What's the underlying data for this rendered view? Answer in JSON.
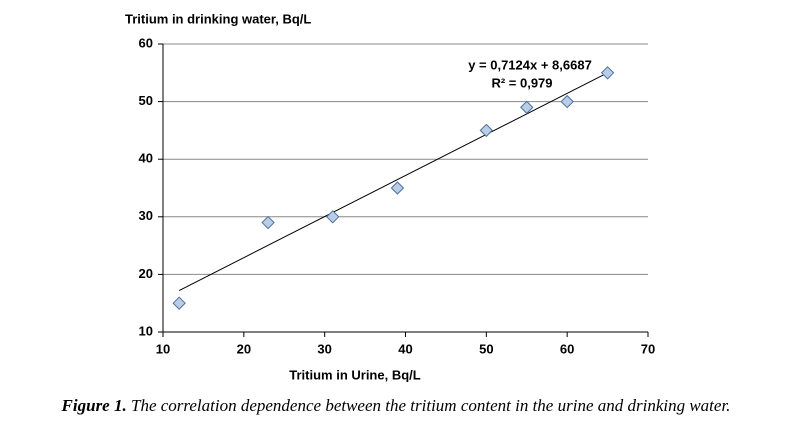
{
  "chart_data": {
    "type": "scatter",
    "title": "Tritium in drinking water, Bq/L",
    "x_label": "Tritium in Urine, Bq/L",
    "annotations": [
      "y = 0,7124x + 8,6687",
      "R² = 0,979"
    ],
    "x": [
      12,
      23,
      31,
      39,
      50,
      55,
      60,
      65
    ],
    "values": [
      15,
      29,
      30,
      35,
      45,
      49,
      50,
      55
    ],
    "color": "#b9cde5",
    "edge_color": "#4a6fa0",
    "trendline": {
      "x": [
        12,
        65
      ],
      "y": [
        17.2,
        55.0
      ],
      "color": "#000000"
    },
    "xlim": [
      10,
      70
    ],
    "xticks": [
      10,
      20,
      30,
      40,
      50,
      60,
      70
    ],
    "ylim": [
      10,
      60
    ],
    "yticks": [
      10,
      20,
      30,
      40,
      50,
      60
    ],
    "grid": true
  },
  "caption": {
    "label": "Figure 1.",
    "text": "The correlation dependence between the tritium content in the urine and drinking water."
  }
}
